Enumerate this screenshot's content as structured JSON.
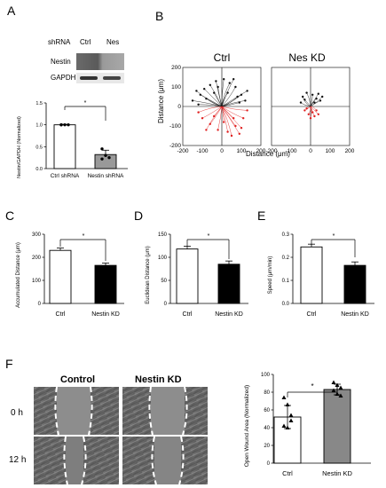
{
  "panels": {
    "A": "A",
    "B": "B",
    "C": "C",
    "D": "D",
    "E": "E",
    "F": "F"
  },
  "blot": {
    "shrna_label": "shRNA",
    "lanes": [
      "Ctrl",
      "Nes"
    ],
    "rows": [
      "Nestin",
      "GAPDH"
    ]
  },
  "chart_data": [
    {
      "id": "A-bar",
      "type": "bar",
      "categories": [
        "Ctrl shRNA",
        "Nestin shRNA"
      ],
      "values": [
        1.0,
        0.32
      ],
      "errors": [
        0.01,
        0.1
      ],
      "points": [
        [
          1.0,
          1.0,
          1.0,
          1.0
        ],
        [
          0.45,
          0.3,
          0.25,
          0.22
        ]
      ],
      "fills": [
        "#ffffff",
        "#999999"
      ],
      "ylabel": "Nestin/GAPDH (Normalized)",
      "ylim": [
        0,
        1.5
      ],
      "yticks": [
        "0.0",
        "0.5",
        "1.0",
        "1.5"
      ],
      "significance": "*"
    },
    {
      "id": "B-ctrl",
      "type": "scatter",
      "title": "Ctrl",
      "xlabel": "Distance (μm)",
      "ylabel": "Distance (μm)",
      "xlim": [
        -200,
        200
      ],
      "ylim": [
        -200,
        200
      ],
      "ticks": [
        "-200",
        "-100",
        "0",
        "100",
        "200"
      ],
      "tracks_black": [
        [
          -130,
          80
        ],
        [
          -150,
          30
        ],
        [
          -90,
          90
        ],
        [
          -60,
          110
        ],
        [
          -30,
          130
        ],
        [
          10,
          140
        ],
        [
          40,
          120
        ],
        [
          70,
          100
        ],
        [
          100,
          60
        ],
        [
          120,
          30
        ],
        [
          -110,
          60
        ],
        [
          -80,
          40
        ],
        [
          -40,
          70
        ],
        [
          30,
          70
        ],
        [
          80,
          50
        ],
        [
          -120,
          10
        ],
        [
          90,
          20
        ],
        [
          -20,
          100
        ],
        [
          60,
          140
        ],
        [
          130,
          80
        ]
      ],
      "tracks_red": [
        [
          -100,
          -60
        ],
        [
          -60,
          -90
        ],
        [
          -20,
          -120
        ],
        [
          30,
          -130
        ],
        [
          70,
          -100
        ],
        [
          110,
          -60
        ],
        [
          -120,
          -30
        ],
        [
          50,
          -150
        ],
        [
          90,
          -140
        ],
        [
          10,
          -80
        ],
        [
          -40,
          -50
        ],
        [
          130,
          -20
        ],
        [
          60,
          -60
        ],
        [
          -80,
          -120
        ],
        [
          100,
          -110
        ]
      ]
    },
    {
      "id": "B-nes",
      "type": "scatter",
      "title": "Nes KD",
      "xlabel": "Distance (μm)",
      "ylim": [
        -200,
        200
      ],
      "xlim": [
        -200,
        200
      ],
      "ticks": [
        "-200",
        "-100",
        "0",
        "100",
        "200"
      ],
      "tracks_black": [
        [
          -40,
          50
        ],
        [
          -20,
          70
        ],
        [
          10,
          60
        ],
        [
          30,
          40
        ],
        [
          50,
          30
        ],
        [
          -50,
          20
        ],
        [
          20,
          20
        ],
        [
          60,
          50
        ],
        [
          -30,
          35
        ],
        [
          40,
          65
        ]
      ],
      "tracks_red": [
        [
          -30,
          -20
        ],
        [
          -10,
          -40
        ],
        [
          10,
          -30
        ],
        [
          30,
          -20
        ],
        [
          20,
          -50
        ],
        [
          -20,
          -10
        ],
        [
          40,
          -40
        ],
        [
          0,
          -60
        ]
      ]
    },
    {
      "id": "C-bar",
      "type": "bar",
      "categories": [
        "Ctrl",
        "Nestin KD"
      ],
      "values": [
        230,
        165
      ],
      "errors": [
        10,
        10
      ],
      "fills": [
        "#ffffff",
        "#000000"
      ],
      "ylabel": "Accumulated Distance (μm)",
      "ylim": [
        0,
        300
      ],
      "yticks": [
        "0",
        "100",
        "200",
        "300"
      ],
      "significance": "*"
    },
    {
      "id": "D-bar",
      "type": "bar",
      "categories": [
        "Ctrl",
        "Nestin KD"
      ],
      "values": [
        118,
        85
      ],
      "errors": [
        6,
        7
      ],
      "fills": [
        "#ffffff",
        "#000000"
      ],
      "ylabel": "Euclidean Distance (μm)",
      "ylim": [
        0,
        150
      ],
      "yticks": [
        "0",
        "50",
        "100",
        "150"
      ],
      "significance": "*"
    },
    {
      "id": "E-bar",
      "type": "bar",
      "categories": [
        "Ctrl",
        "Nestin KD"
      ],
      "values": [
        0.245,
        0.165
      ],
      "errors": [
        0.012,
        0.015
      ],
      "fills": [
        "#ffffff",
        "#000000"
      ],
      "ylabel": "Speed (μm/min)",
      "ylim": [
        0,
        0.3
      ],
      "yticks": [
        "0.0",
        "0.1",
        "0.2",
        "0.3"
      ],
      "significance": "*"
    },
    {
      "id": "F-bar",
      "type": "bar",
      "categories": [
        "Ctrl",
        "Nestin KD"
      ],
      "values": [
        52,
        83
      ],
      "errors": [
        13,
        6
      ],
      "points": [
        [
          74,
          66,
          54,
          42,
          40,
          48
        ],
        [
          91,
          88,
          85,
          82,
          78,
          76
        ]
      ],
      "fills": [
        "#ffffff",
        "#888888"
      ],
      "ylabel": "Open Wound Area (Normalized)",
      "ylim": [
        0,
        100
      ],
      "yticks": [
        "0",
        "20",
        "40",
        "60",
        "80",
        "100"
      ],
      "significance": "*"
    }
  ],
  "micrographs": {
    "columns": [
      "Control",
      "Nestin KD"
    ],
    "rows": [
      "0 h",
      "12 h"
    ]
  }
}
